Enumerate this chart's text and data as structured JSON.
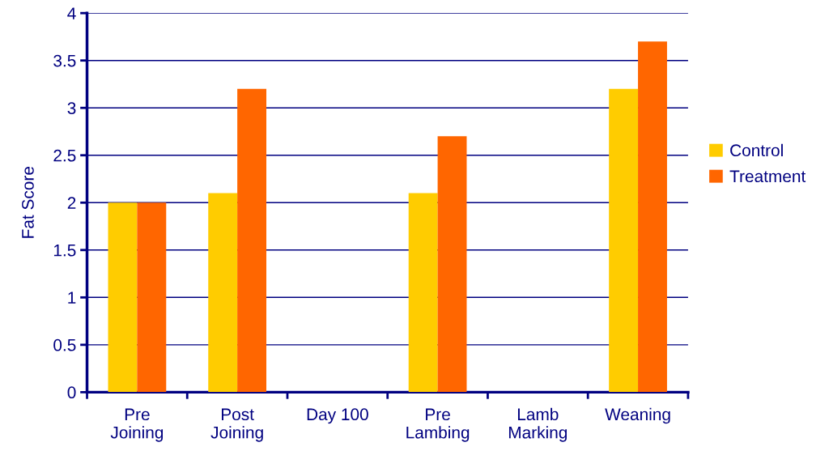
{
  "chart_data": {
    "type": "bar",
    "ylabel": "Fat Score",
    "categories": [
      "Pre\nJoining",
      "Post\nJoining",
      "Day 100",
      "Pre\nLambing",
      "Lamb\nMarking",
      "Weaning"
    ],
    "series": [
      {
        "name": "Control",
        "color": "#ffcc00",
        "values": [
          2,
          2.1,
          null,
          2.1,
          null,
          3.2
        ]
      },
      {
        "name": "Treatment",
        "color": "#ff6600",
        "values": [
          2,
          3.2,
          null,
          2.7,
          null,
          3.7
        ]
      }
    ],
    "ylim": [
      0,
      4
    ],
    "yticks": [
      0,
      0.5,
      1,
      1.5,
      2,
      2.5,
      3,
      3.5,
      4
    ],
    "grid": "y",
    "legend": "right"
  }
}
